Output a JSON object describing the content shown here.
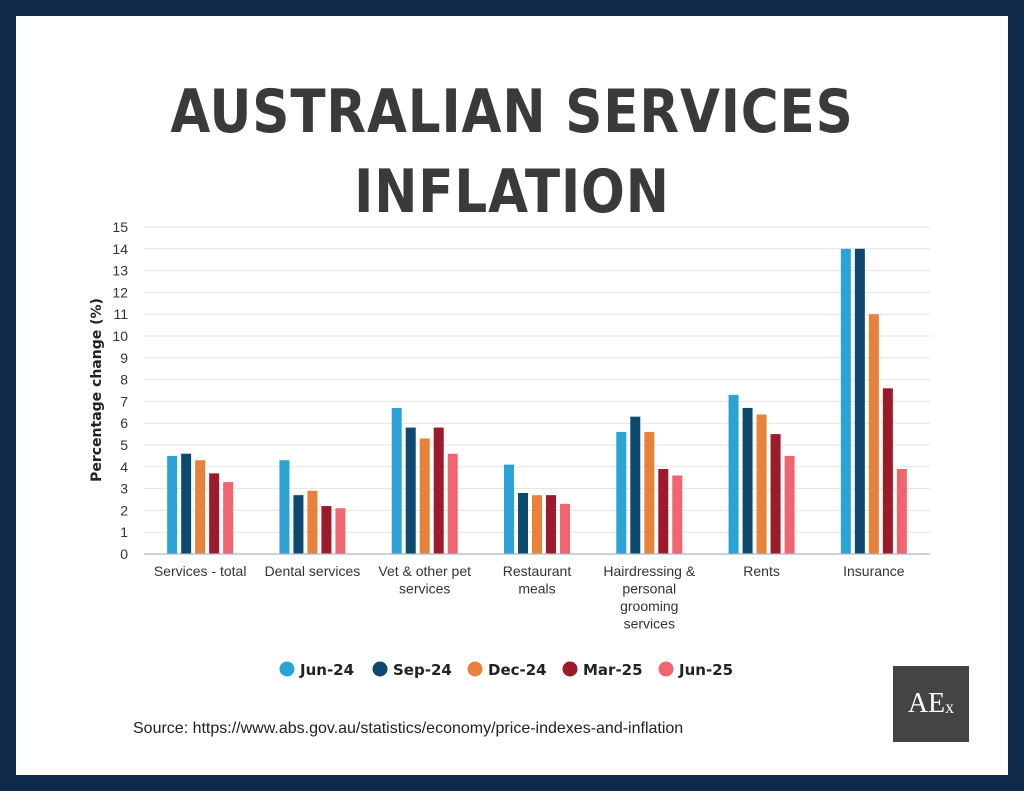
{
  "title": "AUSTRALIAN SERVICES INFLATION",
  "source": "Source: https://www.abs.gov.au/statistics/economy/price-indexes-and-inflation",
  "logo": {
    "main": "AE",
    "sub": "x"
  },
  "colors": {
    "Jun-24": "#2ba3d6",
    "Sep-24": "#0d4a6e",
    "Dec-24": "#e8823a",
    "Mar-25": "#9b1b2a",
    "Jun-25": "#f06570",
    "grid": "#e3e3e3",
    "axis": "#a9b9c6",
    "text": "#333333"
  },
  "chart_data": {
    "type": "bar",
    "title": "",
    "xlabel": "",
    "ylabel": "Percentage change (%)",
    "ylim": [
      0,
      15
    ],
    "yticks": [
      0,
      1,
      2,
      3,
      4,
      5,
      6,
      7,
      8,
      9,
      10,
      11,
      12,
      13,
      14,
      15
    ],
    "grid": true,
    "legend": "bottom",
    "categories": [
      [
        "Services - total"
      ],
      [
        "Dental services"
      ],
      [
        "Vet & other pet",
        "services"
      ],
      [
        "Restaurant",
        "meals"
      ],
      [
        "Hairdressing &",
        "personal",
        "grooming",
        "services"
      ],
      [
        "Rents"
      ],
      [
        "Insurance"
      ]
    ],
    "series": [
      {
        "name": "Jun-24",
        "values": [
          4.5,
          4.3,
          6.7,
          4.1,
          5.6,
          7.3,
          14.0
        ]
      },
      {
        "name": "Sep-24",
        "values": [
          4.6,
          2.7,
          5.8,
          2.8,
          6.3,
          6.7,
          14.0
        ]
      },
      {
        "name": "Dec-24",
        "values": [
          4.3,
          2.9,
          5.3,
          2.7,
          5.6,
          6.4,
          11.0
        ]
      },
      {
        "name": "Mar-25",
        "values": [
          3.7,
          2.2,
          5.8,
          2.7,
          3.9,
          5.5,
          7.6
        ]
      },
      {
        "name": "Jun-25",
        "values": [
          3.3,
          2.1,
          4.6,
          2.3,
          3.6,
          4.5,
          3.9
        ]
      }
    ]
  }
}
